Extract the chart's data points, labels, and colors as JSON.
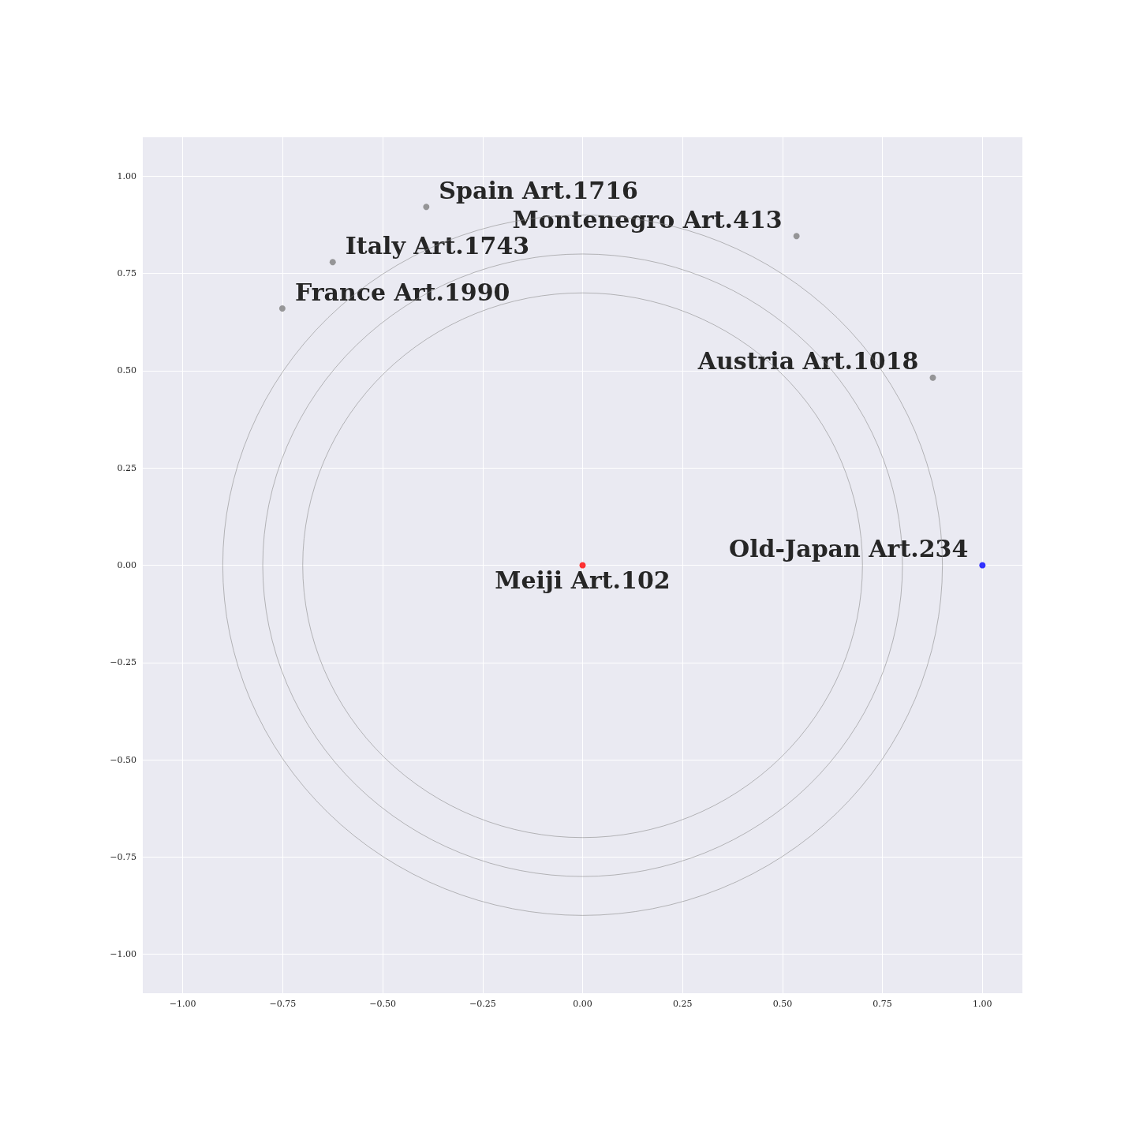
{
  "chart_data": {
    "type": "scatter",
    "series": [
      {
        "color": "#808080",
        "marker": "circle",
        "x": [
          0.876,
          0.535,
          -0.391,
          -0.625,
          -0.751
        ],
        "values": [
          0.482,
          0.846,
          0.921,
          0.779,
          0.66
        ]
      },
      {
        "color": "#ff0000",
        "marker": "circle",
        "x": [
          0
        ],
        "values": [
          0
        ]
      },
      {
        "color": "#0000ff",
        "marker": "circle",
        "x": [
          1
        ],
        "values": [
          0
        ]
      }
    ],
    "annotations": [
      {
        "text": "Meiji Art.102",
        "x": 0,
        "y": 0
      },
      {
        "text": "Old-Japan Art.234",
        "x": 1,
        "y": 0
      },
      {
        "text": "Austria Art.1018",
        "x": 0.876,
        "y": 0.482
      },
      {
        "text": "Montenegro Art.413",
        "x": 0.535,
        "y": 0.846
      },
      {
        "text": "Spain Art.1716",
        "x": -0.391,
        "y": 0.921
      },
      {
        "text": "Italy Art.1743",
        "x": -0.625,
        "y": 0.779
      },
      {
        "text": "France Art.1990",
        "x": -0.751,
        "y": 0.66
      }
    ],
    "xlim": [
      -1.1,
      1.1
    ],
    "ylim": [
      -1.1,
      1.1
    ],
    "xticks": [
      {
        "value": -1,
        "label": "−1.00"
      },
      {
        "value": -0.75,
        "label": "−0.75"
      },
      {
        "value": -0.5,
        "label": "−0.50"
      },
      {
        "value": -0.25,
        "label": "−0.25"
      },
      {
        "value": 0,
        "label": "0.00"
      },
      {
        "value": 0.25,
        "label": "0.25"
      },
      {
        "value": 0.5,
        "label": "0.50"
      },
      {
        "value": 0.75,
        "label": "0.75"
      },
      {
        "value": 1,
        "label": "1.00"
      }
    ],
    "yticks": [
      {
        "value": -1,
        "label": "−1.00"
      },
      {
        "value": -0.75,
        "label": "−0.75"
      },
      {
        "value": -0.5,
        "label": "−0.50"
      },
      {
        "value": -0.25,
        "label": "−0.25"
      },
      {
        "value": 0,
        "label": "0.00"
      },
      {
        "value": 0.25,
        "label": "0.25"
      },
      {
        "value": 0.5,
        "label": "0.50"
      },
      {
        "value": 0.75,
        "label": "0.75"
      },
      {
        "value": 1,
        "label": "1.00"
      }
    ],
    "grid": true
  }
}
